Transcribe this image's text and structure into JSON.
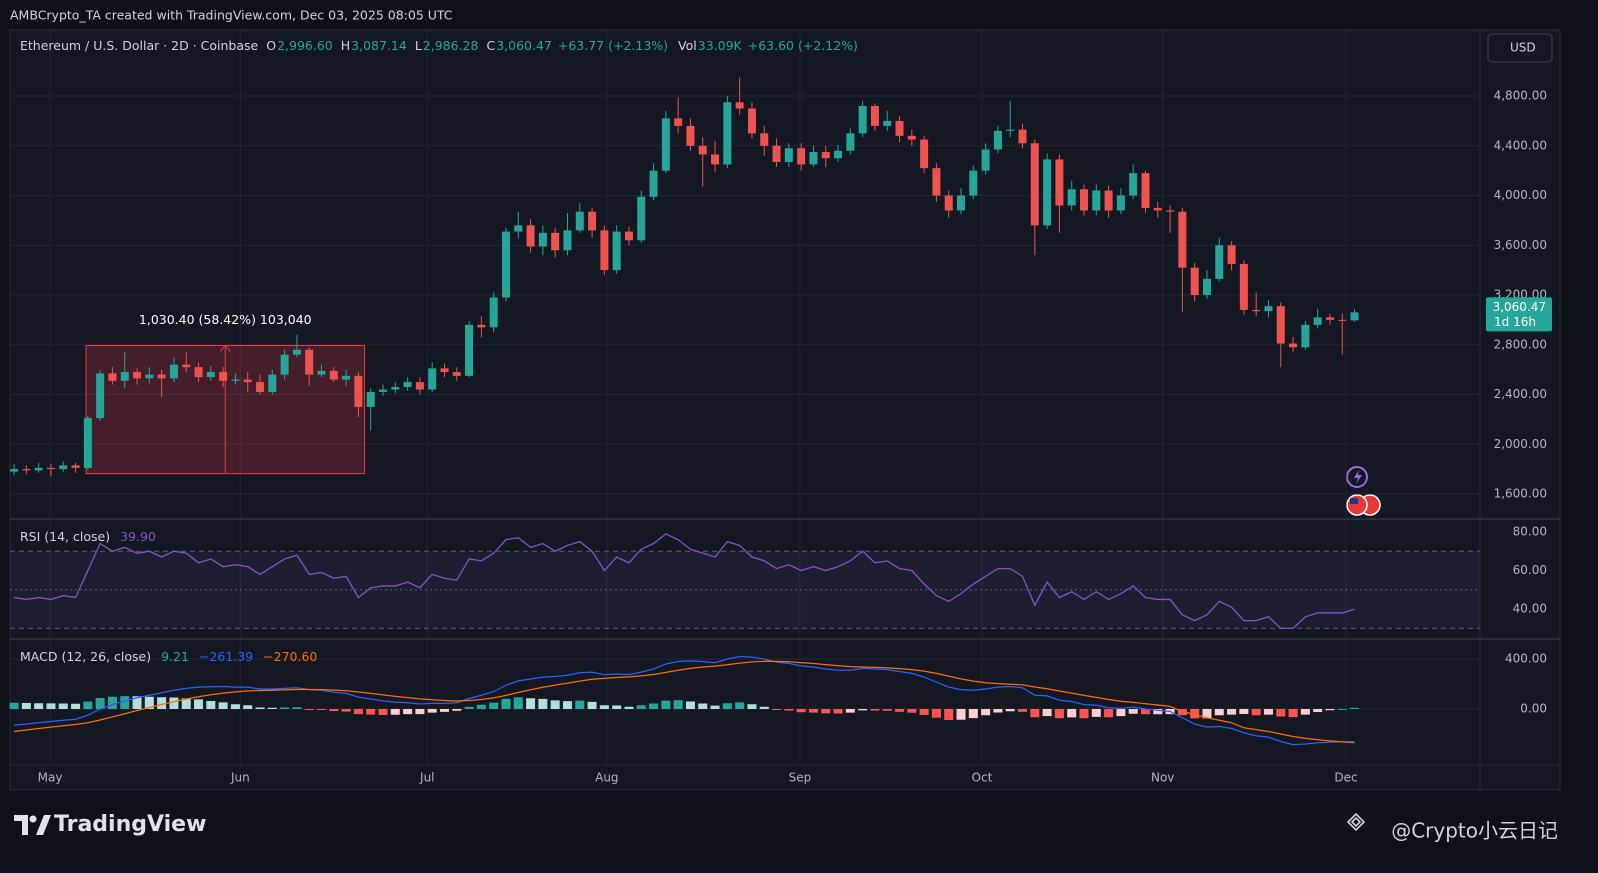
{
  "header": {
    "attribution": "AMBCrypto_TA created with TradingView.com, Dec 03, 2025 08:05 UTC"
  },
  "chart_data": [
    {
      "type": "candlestick",
      "title": "Ethereum / U.S. Dollar · 2D · Coinbase",
      "ohlc_legend": [
        {
          "key": "O",
          "value": "2,996.60"
        },
        {
          "key": "H",
          "value": "3,087.14"
        },
        {
          "key": "L",
          "value": "2,986.28"
        },
        {
          "key": "C",
          "value": "3,060.47"
        }
      ],
      "change": "+63.77 (+2.13%)",
      "volume": {
        "key": "Vol",
        "value": "33.09K"
      },
      "volume_change": "+63.60 (+2.12%)",
      "currency": "USD",
      "last_price_label": "3,060.47",
      "countdown": "1d 16h",
      "up_color": "#26a69a",
      "down_color": "#ef5350",
      "open": [
        1780,
        1800,
        1790,
        1810,
        1800,
        1830,
        1810,
        2210,
        2570,
        2510,
        2580,
        2530,
        2560,
        2530,
        2640,
        2620,
        2540,
        2580,
        2510,
        2520,
        2500,
        2420,
        2560,
        2720,
        2760,
        2560,
        2590,
        2520,
        2550,
        2300,
        2420,
        2440,
        2460,
        2500,
        2440,
        2610,
        2580,
        2550,
        2960,
        2940,
        3180,
        3710,
        3760,
        3590,
        3700,
        3560,
        3720,
        3870,
        3720,
        3400,
        3710,
        3640,
        3990,
        4200,
        4620,
        4560,
        4400,
        4330,
        4250,
        4750,
        4700,
        4500,
        4400,
        4270,
        4380,
        4250,
        4350,
        4300,
        4360,
        4500,
        4720,
        4560,
        4600,
        4480,
        4450,
        4220,
        4000,
        3880,
        4000,
        4200,
        4370,
        4520,
        4530,
        4420,
        3760,
        4290,
        3920,
        4050,
        3880,
        4040,
        3880,
        4000,
        4180,
        3900,
        3880,
        3870,
        3420,
        3200,
        3330,
        3600,
        3450,
        3080,
        3070,
        3110,
        2810,
        2780,
        2960,
        3020,
        3000,
        2996.6
      ],
      "high": [
        1840,
        1830,
        1850,
        1840,
        1860,
        1850,
        2230,
        2600,
        2620,
        2740,
        2610,
        2620,
        2600,
        2700,
        2740,
        2660,
        2630,
        2620,
        2570,
        2580,
        2560,
        2600,
        2760,
        2880,
        2780,
        2640,
        2620,
        2600,
        2580,
        2450,
        2480,
        2500,
        2540,
        2540,
        2660,
        2650,
        2620,
        2990,
        3030,
        3220,
        3740,
        3870,
        3810,
        3760,
        3740,
        3860,
        3940,
        3900,
        3760,
        3760,
        3750,
        4040,
        4260,
        4680,
        4790,
        4620,
        4470,
        4440,
        4800,
        4950,
        4750,
        4560,
        4460,
        4420,
        4420,
        4400,
        4400,
        4410,
        4540,
        4760,
        4740,
        4680,
        4640,
        4530,
        4480,
        4260,
        4040,
        4060,
        4240,
        4420,
        4560,
        4760,
        4580,
        4450,
        4340,
        4330,
        4120,
        4090,
        4090,
        4080,
        4060,
        4250,
        4200,
        3950,
        3920,
        3900,
        3460,
        3400,
        3660,
        3630,
        3480,
        3220,
        3160,
        3140,
        2860,
        2990,
        3090,
        3050,
        3050,
        3087.14
      ],
      "low": [
        1750,
        1760,
        1770,
        1740,
        1780,
        1770,
        1790,
        2190,
        2480,
        2450,
        2480,
        2490,
        2380,
        2500,
        2580,
        2500,
        2510,
        2460,
        2480,
        2420,
        2400,
        2400,
        2520,
        2700,
        2470,
        2540,
        2500,
        2470,
        2220,
        2110,
        2390,
        2410,
        2430,
        2400,
        2420,
        2540,
        2510,
        2540,
        2860,
        2900,
        3150,
        3660,
        3540,
        3520,
        3500,
        3520,
        3700,
        3660,
        3360,
        3370,
        3600,
        3620,
        3960,
        4180,
        4500,
        4360,
        4070,
        4190,
        4220,
        4650,
        4460,
        4320,
        4230,
        4230,
        4200,
        4230,
        4230,
        4270,
        4330,
        4470,
        4520,
        4520,
        4430,
        4400,
        4180,
        3950,
        3820,
        3850,
        3970,
        4170,
        4340,
        4470,
        4380,
        3520,
        3730,
        3700,
        3880,
        3840,
        3840,
        3820,
        3850,
        3970,
        3860,
        3820,
        3700,
        3060,
        3150,
        3170,
        3310,
        3400,
        3040,
        3030,
        3020,
        2620,
        2740,
        2760,
        2930,
        2960,
        2720,
        2986.28
      ],
      "close": [
        1800,
        1790,
        1810,
        1800,
        1830,
        1810,
        2210,
        2570,
        2510,
        2580,
        2530,
        2560,
        2530,
        2640,
        2620,
        2540,
        2580,
        2510,
        2520,
        2500,
        2420,
        2560,
        2720,
        2760,
        2560,
        2590,
        2520,
        2550,
        2300,
        2420,
        2440,
        2460,
        2500,
        2440,
        2610,
        2580,
        2550,
        2960,
        2940,
        3180,
        3710,
        3760,
        3590,
        3700,
        3560,
        3720,
        3870,
        3720,
        3400,
        3710,
        3640,
        3990,
        4200,
        4620,
        4560,
        4400,
        4330,
        4250,
        4750,
        4700,
        4500,
        4400,
        4270,
        4380,
        4250,
        4350,
        4300,
        4360,
        4500,
        4720,
        4560,
        4600,
        4480,
        4450,
        4220,
        4000,
        3880,
        4000,
        4200,
        4370,
        4520,
        4530,
        4420,
        3760,
        4290,
        3920,
        4050,
        3880,
        4040,
        3880,
        4000,
        4180,
        3900,
        3880,
        3870,
        3420,
        3200,
        3330,
        3600,
        3450,
        3080,
        3070,
        3110,
        2810,
        2780,
        2960,
        3020,
        3000,
        2996.6,
        3060.47
      ],
      "measure": {
        "label": "1,030.40 (58.42%) 103,040",
        "from": 1763.8,
        "to": 2794.2,
        "start": 5.85,
        "end": 28.5
      },
      "xlim": [
        -0.33,
        119.2
      ],
      "xticks": [
        {
          "value": 2.93,
          "label": "May"
        },
        {
          "value": 18.4,
          "label": "Jun"
        },
        {
          "value": 33.6,
          "label": "Jul"
        },
        {
          "value": 48.2,
          "label": "Aug"
        },
        {
          "value": 63.9,
          "label": "Sep"
        },
        {
          "value": 78.7,
          "label": "Oct"
        },
        {
          "value": 93.4,
          "label": "Nov"
        },
        {
          "value": 108.3,
          "label": "Dec"
        }
      ],
      "ylim": [
        1407,
        5331
      ],
      "yticks": [
        {
          "value": 1600,
          "label": "1,600.00"
        },
        {
          "value": 2000,
          "label": "2,000.00"
        },
        {
          "value": 2400,
          "label": "2,400.00"
        },
        {
          "value": 2800,
          "label": "2,800.00"
        },
        {
          "value": 3200,
          "label": "3,200.00"
        },
        {
          "value": 3600,
          "label": "3,600.00"
        },
        {
          "value": 4000,
          "label": "4,000.00"
        },
        {
          "value": 4400,
          "label": "4,400.00"
        },
        {
          "value": 4800,
          "label": "4,800.00"
        }
      ],
      "grid": true
    },
    {
      "type": "line",
      "title": "RSI (14, close)",
      "value_label": "39.90",
      "color": "#7e57c2",
      "values": [
        46,
        45,
        46,
        45,
        47,
        46,
        60,
        74,
        70,
        72,
        69,
        70,
        67,
        70,
        69,
        64,
        66,
        62,
        63,
        62,
        58,
        62,
        66,
        68,
        58,
        59,
        56,
        57,
        46,
        51,
        52,
        52,
        54,
        51,
        58,
        56,
        55,
        66,
        65,
        69,
        76,
        77,
        72,
        74,
        70,
        73,
        75,
        70,
        60,
        67,
        64,
        71,
        74,
        79,
        76,
        71,
        69,
        67,
        75,
        73,
        67,
        65,
        61,
        63,
        60,
        62,
        60,
        62,
        65,
        70,
        64,
        65,
        61,
        60,
        53,
        47,
        44,
        48,
        53,
        57,
        61,
        61,
        57,
        42,
        54,
        46,
        49,
        45,
        49,
        45,
        48,
        52,
        46,
        45,
        45,
        37,
        34,
        37,
        44,
        41,
        34,
        34,
        36,
        30,
        30,
        36,
        38,
        38,
        38,
        39.9
      ],
      "bands": [
        30,
        50,
        70
      ],
      "ylim": [
        25,
        86.2
      ],
      "yticks": [
        {
          "value": 40,
          "label": "40.00"
        },
        {
          "value": 60,
          "label": "60.00"
        },
        {
          "value": 80,
          "label": "80.00"
        }
      ],
      "grid": false
    },
    {
      "type": "macd",
      "title": "MACD (12, 26, close)",
      "series": [
        {
          "kind": "histogram",
          "value_label": "9.21",
          "color": "#26a69a",
          "colors": [
            "#26a69a",
            "#b2dfdb",
            "#ffcdd2",
            "#ff5252"
          ],
          "values": [
            50,
            48,
            46,
            45,
            44,
            42,
            60,
            88,
            98,
            103,
            102,
            98,
            94,
            92,
            85,
            77,
            64,
            53,
            38,
            30,
            12,
            10,
            12,
            14,
            -1,
            -5,
            -16,
            -21,
            -41,
            -45,
            -48,
            -46,
            -41,
            -41,
            -29,
            -23,
            -14,
            17,
            34,
            51,
            81,
            93,
            86,
            81,
            69,
            63,
            67,
            57,
            30,
            28,
            18,
            30,
            44,
            67,
            70,
            60,
            44,
            27,
            46,
            53,
            38,
            18,
            -6,
            -13,
            -26,
            -29,
            -35,
            -36,
            -29,
            -11,
            -13,
            -14,
            -23,
            -30,
            -48,
            -70,
            -88,
            -86,
            -73,
            -50,
            -28,
            -18,
            -23,
            -66,
            -57,
            -74,
            -67,
            -74,
            -63,
            -66,
            -57,
            -38,
            -42,
            -42,
            -41,
            -50,
            -75,
            -75,
            -50,
            -45,
            -40,
            -50,
            -45,
            -60,
            -65,
            -45,
            -24,
            -10,
            1,
            9.21
          ]
        },
        {
          "kind": "line",
          "value_label": "−261.39",
          "color": "#2962ff",
          "values": [
            -130,
            -120,
            -110,
            -100,
            -90,
            -82,
            -50,
            0,
            35,
            65,
            90,
            110,
            130,
            150,
            165,
            175,
            178,
            180,
            175,
            175,
            160,
            160,
            165,
            170,
            155,
            150,
            135,
            125,
            95,
            80,
            65,
            55,
            50,
            40,
            45,
            45,
            50,
            85,
            110,
            140,
            190,
            225,
            240,
            255,
            260,
            270,
            290,
            295,
            275,
            280,
            275,
            295,
            320,
            360,
            380,
            385,
            380,
            370,
            400,
            420,
            415,
            400,
            375,
            365,
            345,
            335,
            320,
            310,
            310,
            325,
            320,
            315,
            300,
            285,
            255,
            215,
            175,
            155,
            150,
            160,
            175,
            180,
            170,
            110,
            105,
            70,
            60,
            35,
            30,
            10,
            5,
            15,
            0,
            -10,
            -20,
            -70,
            -120,
            -145,
            -140,
            -155,
            -190,
            -215,
            -225,
            -260,
            -285,
            -280,
            -270,
            -265,
            -262,
            -261.39
          ]
        },
        {
          "kind": "line",
          "value_label": "−270.60",
          "color": "#ff6d00",
          "values": [
            -180,
            -168,
            -156,
            -145,
            -134,
            -124,
            -110,
            -88,
            -63,
            -38,
            -12,
            12,
            36,
            58,
            80,
            98,
            114,
            127,
            137,
            145,
            148,
            150,
            153,
            156,
            156,
            155,
            151,
            146,
            136,
            125,
            113,
            101,
            91,
            81,
            74,
            68,
            64,
            68,
            76,
            89,
            109,
            132,
            154,
            174,
            191,
            207,
            223,
            238,
            245,
            252,
            257,
            265,
            276,
            293,
            310,
            325,
            336,
            343,
            354,
            367,
            377,
            382,
            381,
            378,
            371,
            364,
            355,
            346,
            339,
            336,
            333,
            329,
            323,
            315,
            303,
            285,
            263,
            241,
            223,
            210,
            203,
            198,
            193,
            176,
            162,
            144,
            127,
            109,
            93,
            76,
            62,
            53,
            42,
            32,
            21,
            -20,
            -45,
            -70,
            -90,
            -110,
            -150,
            -165,
            -180,
            -200,
            -220,
            -235,
            -246,
            -255,
            -263,
            -270.6
          ]
        }
      ],
      "ylim": [
        -448,
        552
      ],
      "yticks": [
        {
          "value": 0,
          "label": "0.00"
        },
        {
          "value": 400,
          "label": "400.00"
        }
      ],
      "grid": true
    }
  ],
  "footer": {
    "brand": "TradingView",
    "watermark": "@Crypto小云日记"
  }
}
